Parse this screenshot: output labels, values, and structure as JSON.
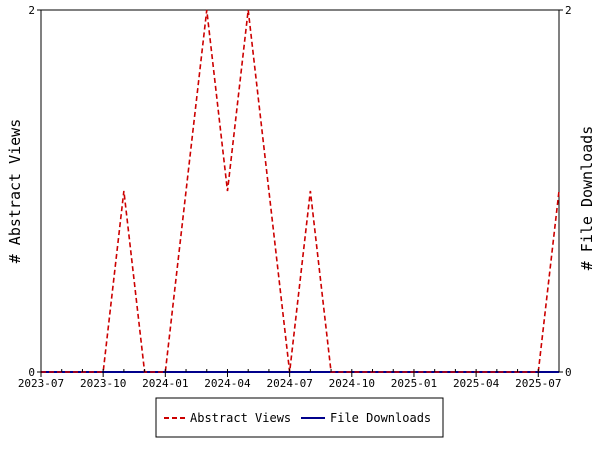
{
  "chart_data": {
    "type": "line",
    "x": [
      "2023-07",
      "2023-08",
      "2023-09",
      "2023-10",
      "2023-11",
      "2023-12",
      "2024-01",
      "2024-02",
      "2024-03",
      "2024-04",
      "2024-05",
      "2024-06",
      "2024-07",
      "2024-08",
      "2024-09",
      "2024-10",
      "2024-11",
      "2024-12",
      "2025-01",
      "2025-02",
      "2025-03",
      "2025-04",
      "2025-05",
      "2025-06",
      "2025-07",
      "2025-08"
    ],
    "series": [
      {
        "name": "Abstract Views",
        "color": "#cc0000",
        "dashed": true,
        "values": [
          0,
          0,
          0,
          0,
          1,
          0,
          0,
          1,
          2,
          1,
          2,
          1,
          0,
          1,
          0,
          0,
          0,
          0,
          0,
          0,
          0,
          0,
          0,
          0,
          0,
          1
        ]
      },
      {
        "name": "File Downloads",
        "color": "#00008b",
        "dashed": false,
        "values": [
          0,
          0,
          0,
          0,
          0,
          0,
          0,
          0,
          0,
          0,
          0,
          0,
          0,
          0,
          0,
          0,
          0,
          0,
          0,
          0,
          0,
          0,
          0,
          0,
          0,
          0
        ]
      }
    ],
    "x_tick_labels": [
      "2023-07",
      "2023-10",
      "2024-01",
      "2024-04",
      "2024-07",
      "2024-10",
      "2025-01",
      "2025-04",
      "2025-07"
    ],
    "y_ticks": [
      "0",
      "2"
    ],
    "y2_ticks": [
      "0",
      "2"
    ],
    "ylim": [
      0,
      2
    ],
    "ylabel": "# Abstract Views",
    "y2label": "# File Downloads",
    "grid": false,
    "legend_placement": "bottom-center"
  }
}
